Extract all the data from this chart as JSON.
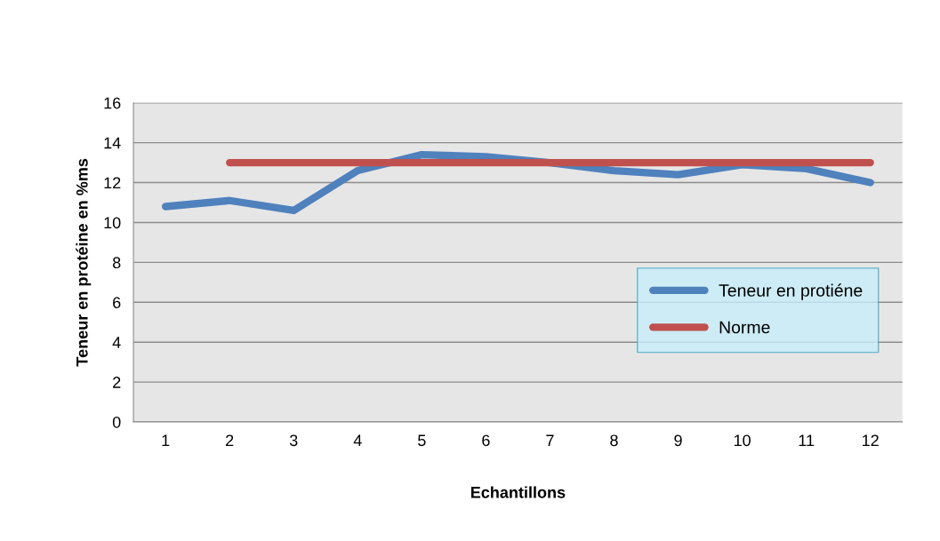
{
  "chart_data": {
    "type": "line",
    "xlabel": "Echantillons",
    "ylabel": "Teneur en protéine en %ms",
    "categories": [
      "1",
      "2",
      "3",
      "4",
      "5",
      "6",
      "7",
      "8",
      "9",
      "10",
      "11",
      "12"
    ],
    "series": [
      {
        "name": "Teneur en protiéne",
        "color": "#4f81bd",
        "values": [
          10.8,
          11.1,
          10.6,
          12.6,
          13.4,
          13.3,
          13.0,
          12.6,
          12.4,
          12.9,
          12.7,
          12.0
        ]
      },
      {
        "name": "Norme",
        "color": "#c0504d",
        "values": [
          null,
          13,
          13,
          13,
          13,
          13,
          13,
          13,
          13,
          13,
          13,
          13
        ]
      }
    ],
    "ylim": [
      0,
      16
    ],
    "yticks": [
      0,
      2,
      4,
      6,
      8,
      10,
      12,
      14,
      16
    ],
    "grid": "y",
    "legend": "right",
    "marker": "none"
  }
}
